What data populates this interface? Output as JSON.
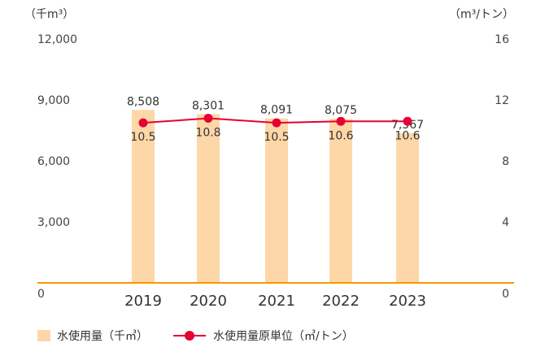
{
  "chart_data": {
    "type": "bar",
    "categories": [
      "2019",
      "2020",
      "2021",
      "2022",
      "2023"
    ],
    "series": [
      {
        "name": "水使用量（千㎥）",
        "type": "bar",
        "axis": "left",
        "values": [
          8508,
          8301,
          8091,
          8075,
          7367
        ],
        "labels": [
          "8,508",
          "8,301",
          "8,091",
          "8,075",
          "7,367"
        ],
        "color": "#fdd7a7"
      },
      {
        "name": "水使用量原単位（㎥/トン）",
        "type": "line",
        "axis": "right",
        "values": [
          10.5,
          10.8,
          10.5,
          10.6,
          10.6
        ],
        "labels": [
          "10.5",
          "10.8",
          "10.5",
          "10.6",
          "10.6"
        ],
        "color": "#e60033"
      }
    ],
    "left_axis": {
      "unit_label": "（千m³）",
      "ylim": [
        0,
        12000
      ],
      "ticks": [
        0,
        3000,
        6000,
        9000,
        12000
      ],
      "tick_labels": [
        "0",
        "3,000",
        "6,000",
        "9,000",
        "12,000"
      ]
    },
    "right_axis": {
      "unit_label": "（m³/トン）",
      "ylim": [
        0,
        16
      ],
      "ticks": [
        0,
        4,
        8,
        12,
        16
      ],
      "tick_labels": [
        "0",
        "4",
        "8",
        "12",
        "16"
      ]
    },
    "baseline_color": "#f39800",
    "grid": false,
    "legend": "bottom-left"
  }
}
